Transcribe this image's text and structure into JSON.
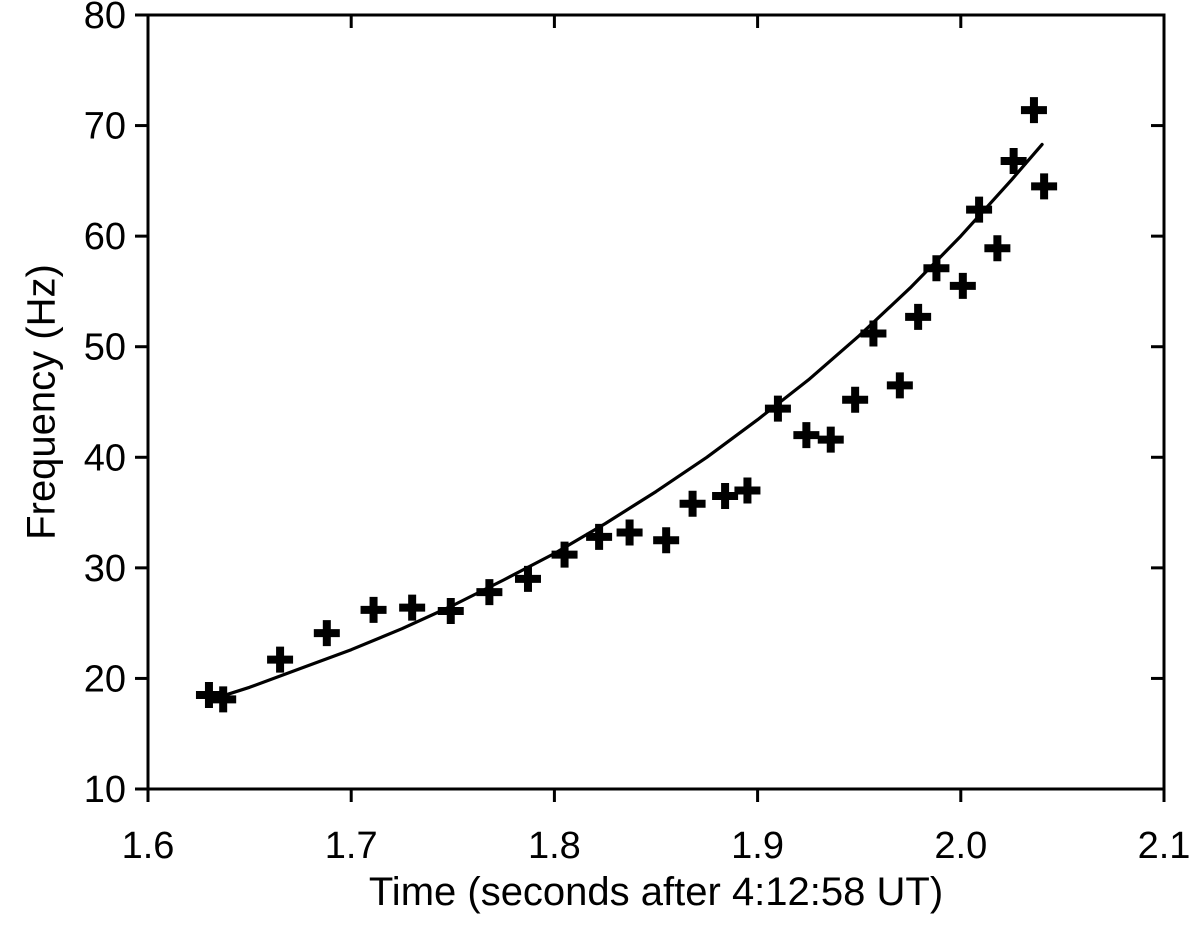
{
  "figure": {
    "background_color": "#ffffff",
    "axis_color": "#000000",
    "marker_color": "#000000",
    "curve_color": "#000000"
  },
  "chart_data": {
    "type": "scatter",
    "title": "",
    "xlabel": "Time (seconds after 4:12:58 UT)",
    "ylabel": "Frequency (Hz)",
    "xlim": [
      1.6,
      2.1
    ],
    "ylim": [
      10,
      80
    ],
    "x_ticks": [
      1.6,
      1.7,
      1.8,
      1.9,
      2.0,
      2.1
    ],
    "x_tick_decimals": 1,
    "y_ticks": [
      10,
      20,
      30,
      40,
      50,
      60,
      70,
      80
    ],
    "grid": false,
    "legend": "none",
    "marker": "plus",
    "points": [
      [
        1.63,
        18.5
      ],
      [
        1.637,
        18.1
      ],
      [
        1.665,
        21.7
      ],
      [
        1.688,
        24.1
      ],
      [
        1.711,
        26.2
      ],
      [
        1.73,
        26.4
      ],
      [
        1.749,
        26.1
      ],
      [
        1.768,
        27.8
      ],
      [
        1.787,
        29.0
      ],
      [
        1.805,
        31.2
      ],
      [
        1.822,
        32.8
      ],
      [
        1.837,
        33.2
      ],
      [
        1.855,
        32.5
      ],
      [
        1.868,
        35.8
      ],
      [
        1.884,
        36.5
      ],
      [
        1.895,
        37.0
      ],
      [
        1.91,
        44.4
      ],
      [
        1.924,
        42.0
      ],
      [
        1.936,
        41.6
      ],
      [
        1.948,
        45.2
      ],
      [
        1.957,
        51.2
      ],
      [
        1.97,
        46.5
      ],
      [
        1.979,
        52.7
      ],
      [
        1.988,
        57.1
      ],
      [
        2.001,
        55.5
      ],
      [
        2.009,
        62.4
      ],
      [
        2.018,
        58.9
      ],
      [
        2.026,
        66.8
      ],
      [
        2.036,
        71.4
      ],
      [
        2.041,
        64.5
      ]
    ],
    "fit_curve": [
      [
        1.633,
        18.2
      ],
      [
        1.65,
        19.2
      ],
      [
        1.675,
        20.9
      ],
      [
        1.7,
        22.6
      ],
      [
        1.725,
        24.5
      ],
      [
        1.75,
        26.6
      ],
      [
        1.775,
        28.9
      ],
      [
        1.8,
        31.3
      ],
      [
        1.825,
        34.0
      ],
      [
        1.85,
        36.9
      ],
      [
        1.875,
        40.0
      ],
      [
        1.9,
        43.4
      ],
      [
        1.925,
        47.0
      ],
      [
        1.95,
        51.0
      ],
      [
        1.975,
        55.3
      ],
      [
        2.0,
        60.0
      ],
      [
        2.025,
        65.1
      ],
      [
        2.04,
        68.3
      ]
    ]
  }
}
